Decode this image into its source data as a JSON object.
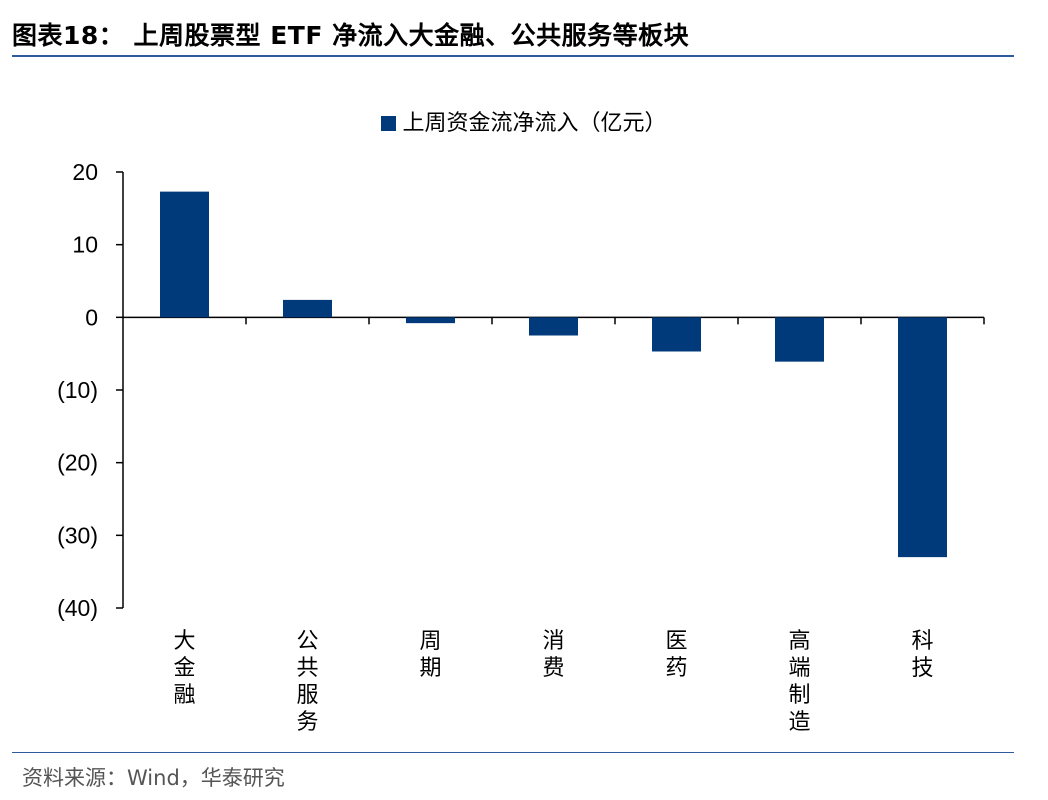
{
  "header": {
    "title": "图表18：  上周股票型 ETF 净流入大金融、公共服务等板块"
  },
  "footer": {
    "source": "资料来源：Wind，华泰研究"
  },
  "colors": {
    "bar": "#003a7a",
    "rule": "#2e5aa0"
  },
  "chart_data": {
    "type": "bar",
    "title": "",
    "xlabel": "",
    "ylabel": "",
    "ylim": [
      -40,
      20
    ],
    "yticks": [
      20,
      10,
      0,
      -10,
      -20,
      -30,
      -40
    ],
    "ytick_labels": [
      "20",
      "10",
      "0",
      "(10)",
      "(20)",
      "(30)",
      "(40)"
    ],
    "categories": [
      "大金融",
      "公共服务",
      "周期",
      "消费",
      "医药",
      "高端制造",
      "科技"
    ],
    "series": [
      {
        "name": "上周资金流净流入（亿元）",
        "values": [
          17.3,
          2.4,
          -0.8,
          -2.5,
          -4.7,
          -6.1,
          -33.0
        ]
      }
    ],
    "legend_position": "top-center",
    "grid": false
  }
}
